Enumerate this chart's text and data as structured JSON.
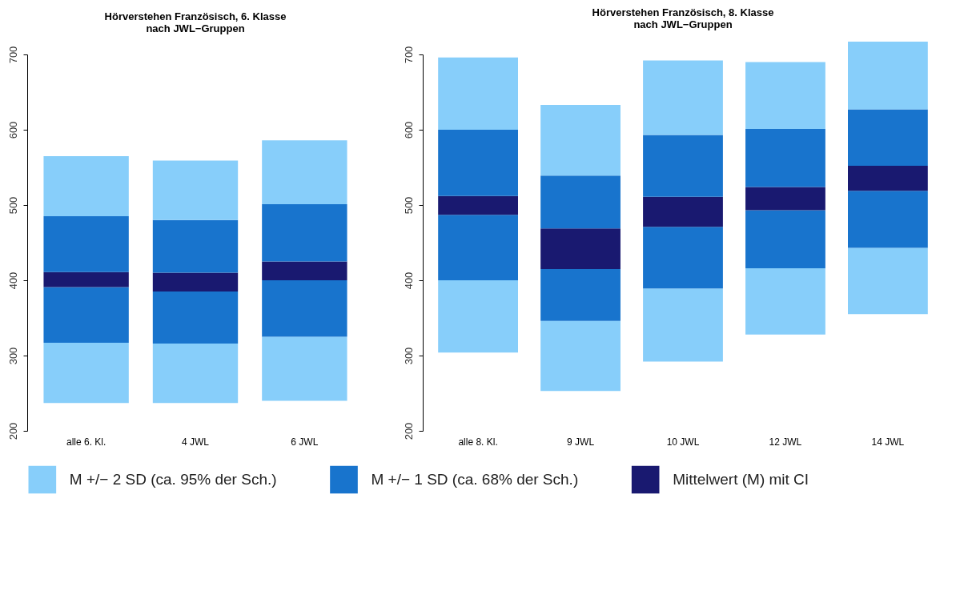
{
  "chart_data": [
    {
      "type": "bar",
      "title": "Hörverstehen Französisch, 6. Klasse\nnach JWL−Gruppen",
      "categories": [
        "alle 6. Kl.",
        "4 JWL",
        "6 JWL"
      ],
      "ylim": [
        200,
        700
      ],
      "yticks": [
        200,
        300,
        400,
        500,
        600,
        700
      ],
      "legend": "bottom",
      "series": [
        {
          "name": "M +/− 2 SD (ca. 95% der Sch.)",
          "color": "#87cefa",
          "base": [
            237,
            237,
            240
          ],
          "values": [
            80,
            79,
            85
          ]
        },
        {
          "name": "M +/− 1 SD (ca. 68% der Sch.)",
          "color": "#1874cd",
          "base": [
            317,
            316,
            325
          ],
          "values": [
            74,
            69,
            75
          ]
        },
        {
          "name": "Mittelwert (M) mit CI",
          "color": "#191970",
          "base": [
            391,
            385,
            400
          ],
          "values": [
            20,
            25,
            25
          ]
        },
        {
          "color": "#1874cd",
          "base": [
            411,
            410,
            425
          ],
          "values": [
            74,
            70,
            76
          ]
        },
        {
          "color": "#87cefa",
          "base": [
            485,
            480,
            501
          ],
          "values": [
            80,
            79,
            85
          ]
        }
      ]
    },
    {
      "type": "bar",
      "title": "Hörverstehen Französisch, 8. Klasse\nnach JWL−Gruppen",
      "categories": [
        "alle 8. Kl.",
        "9 JWL",
        "10 JWL",
        "12 JWL",
        "14 JWL"
      ],
      "ylim": [
        200,
        700
      ],
      "yticks": [
        200,
        300,
        400,
        500,
        600,
        700
      ],
      "series": [
        {
          "color": "#87cefa",
          "base": [
            304,
            253,
            292,
            328,
            355
          ],
          "values": [
            96,
            93,
            97,
            88,
            88
          ]
        },
        {
          "color": "#1874cd",
          "base": [
            400,
            346,
            389,
            416,
            443
          ],
          "values": [
            87,
            69,
            82,
            77,
            76
          ]
        },
        {
          "color": "#191970",
          "base": [
            487,
            415,
            471,
            493,
            519
          ],
          "values": [
            25,
            54,
            40,
            31,
            33
          ]
        },
        {
          "color": "#1874cd",
          "base": [
            512,
            469,
            511,
            524,
            552
          ],
          "values": [
            88,
            70,
            82,
            77,
            75
          ]
        },
        {
          "color": "#87cefa",
          "base": [
            600,
            539,
            593,
            601,
            627
          ],
          "values": [
            96,
            94,
            99,
            89,
            90
          ]
        }
      ]
    }
  ]
}
